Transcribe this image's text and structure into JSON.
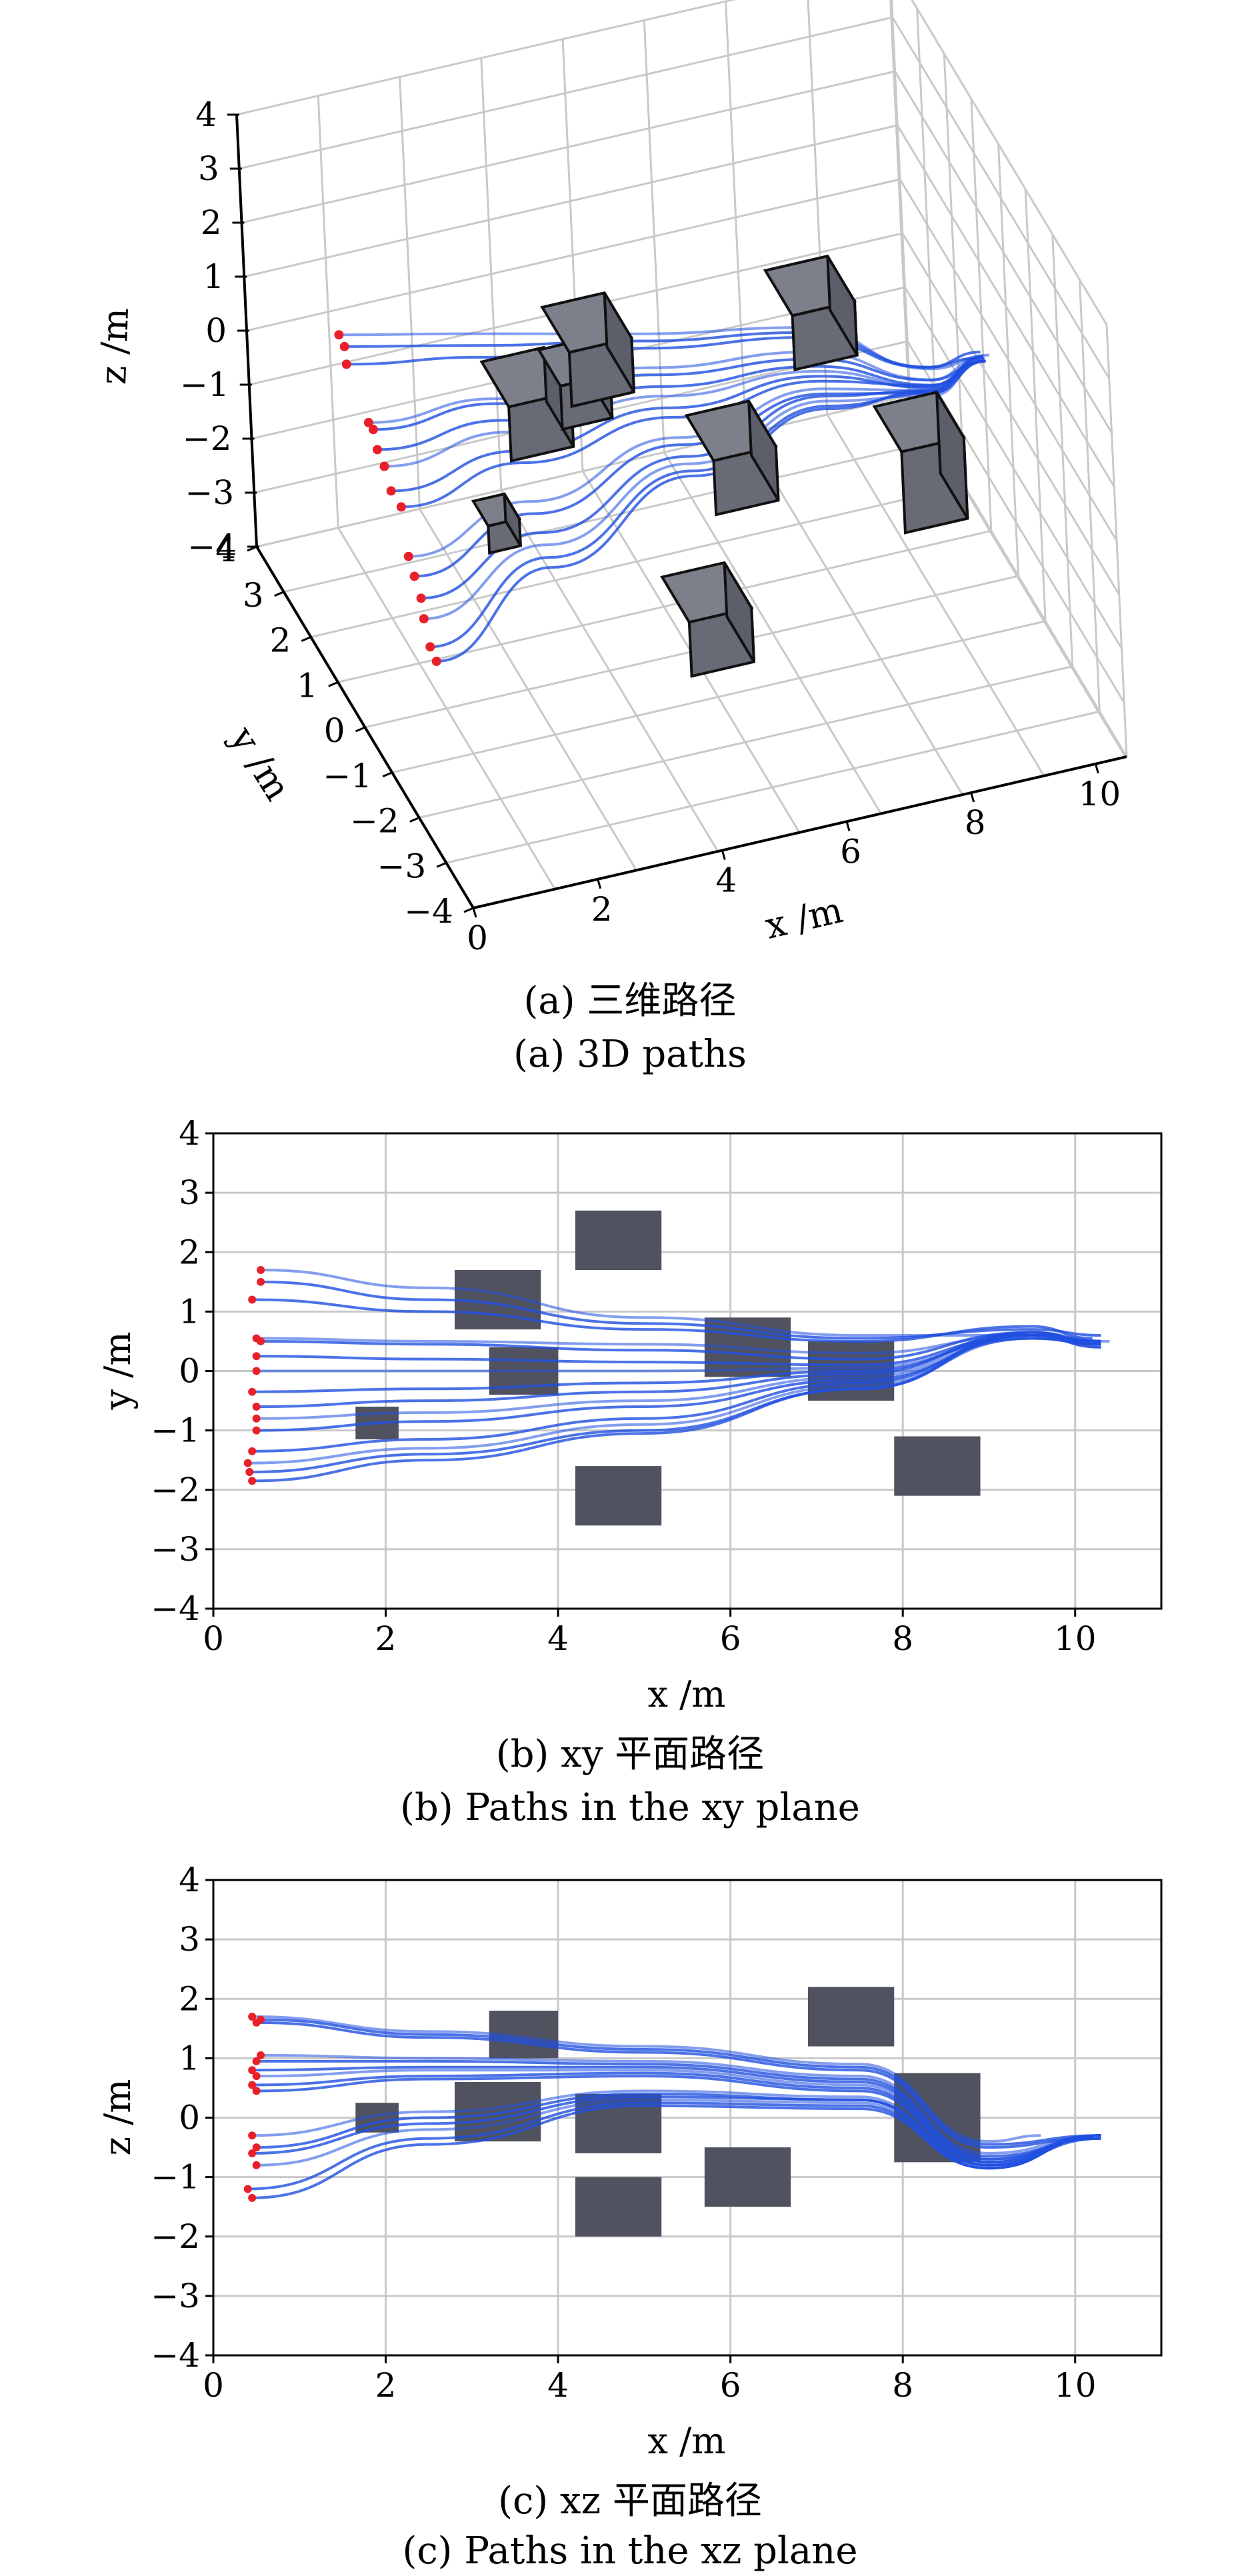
{
  "chart_data": [
    {
      "type": "scatter3d",
      "caption_zh": "(a) 三维路径",
      "caption_en": "(a) 3D paths",
      "xlabel": "x /m",
      "ylabel": "y /m",
      "zlabel": "z /m",
      "xlim": [
        0,
        10.5
      ],
      "ylim": [
        -4,
        4
      ],
      "zlim": [
        -4,
        4
      ],
      "xticks": [
        "0",
        "2",
        "4",
        "6",
        "8",
        "10"
      ],
      "yticks": [
        "−4",
        "−3",
        "−2",
        "−1",
        "0",
        "1",
        "2",
        "3",
        "4"
      ],
      "zticks": [
        "−4",
        "−3",
        "−2",
        "−1",
        "0",
        "1",
        "2",
        "3",
        "4"
      ],
      "grid": true,
      "path_color": "#1f4fe0",
      "start_color": "#e8202a",
      "obstacle_color": "#666a75"
    },
    {
      "type": "line",
      "caption_zh": "(b) xy 平面路径",
      "caption_en": "(b) Paths in the xy plane",
      "xlabel": "x /m",
      "ylabel": "y /m",
      "xlim": [
        0,
        11
      ],
      "ylim": [
        -4,
        4
      ],
      "xticks": [
        "0",
        "2",
        "4",
        "6",
        "8",
        "10"
      ],
      "yticks": [
        "−4",
        "−3",
        "−2",
        "−1",
        "0",
        "1",
        "2",
        "3",
        "4"
      ],
      "grid": true,
      "obstacle_color": "#50535f",
      "path_color": "#1f4fe0",
      "start_color": "#e8202a",
      "obstacles": [
        {
          "x0": 1.65,
          "x1": 2.15,
          "y0": -1.15,
          "y1": -0.6
        },
        {
          "x0": 2.8,
          "x1": 3.8,
          "y0": 0.7,
          "y1": 1.7
        },
        {
          "x0": 3.2,
          "x1": 4.0,
          "y0": -0.4,
          "y1": 0.4
        },
        {
          "x0": 4.2,
          "x1": 5.2,
          "y0": 1.7,
          "y1": 2.7
        },
        {
          "x0": 4.2,
          "x1": 5.2,
          "y0": -2.6,
          "y1": -1.6
        },
        {
          "x0": 5.7,
          "x1": 6.7,
          "y0": -0.1,
          "y1": 0.9
        },
        {
          "x0": 6.9,
          "x1": 7.9,
          "y0": -0.5,
          "y1": 0.5
        },
        {
          "x0": 7.9,
          "x1": 8.9,
          "y0": -2.1,
          "y1": -1.1
        }
      ],
      "starts": [
        {
          "x": 0.55,
          "y": 1.7
        },
        {
          "x": 0.55,
          "y": 1.5
        },
        {
          "x": 0.45,
          "y": 1.2
        },
        {
          "x": 0.5,
          "y": 0.55
        },
        {
          "x": 0.55,
          "y": 0.5
        },
        {
          "x": 0.5,
          "y": 0.25
        },
        {
          "x": 0.5,
          "y": 0.0
        },
        {
          "x": 0.45,
          "y": -0.35
        },
        {
          "x": 0.5,
          "y": -0.6
        },
        {
          "x": 0.5,
          "y": -0.8
        },
        {
          "x": 0.5,
          "y": -1.0
        },
        {
          "x": 0.45,
          "y": -1.35
        },
        {
          "x": 0.4,
          "y": -1.55
        },
        {
          "x": 0.42,
          "y": -1.7
        },
        {
          "x": 0.45,
          "y": -1.85
        }
      ],
      "paths": [
        [
          [
            0.55,
            1.7
          ],
          [
            2.5,
            1.4
          ],
          [
            5,
            0.9
          ],
          [
            7.5,
            0.6
          ],
          [
            9.5,
            0.6
          ],
          [
            10.4,
            0.5
          ]
        ],
        [
          [
            0.55,
            1.5
          ],
          [
            2.5,
            1.2
          ],
          [
            5,
            0.8
          ],
          [
            7.5,
            0.55
          ],
          [
            9.5,
            0.7
          ],
          [
            10.3,
            0.6
          ]
        ],
        [
          [
            0.45,
            1.2
          ],
          [
            2.5,
            1.0
          ],
          [
            5,
            0.7
          ],
          [
            7.5,
            0.5
          ],
          [
            9.5,
            0.75
          ],
          [
            10.2,
            0.55
          ]
        ],
        [
          [
            0.5,
            0.55
          ],
          [
            2.5,
            0.5
          ],
          [
            5,
            0.45
          ],
          [
            7.5,
            0.3
          ],
          [
            9.5,
            0.6
          ],
          [
            10.3,
            0.5
          ]
        ],
        [
          [
            0.55,
            0.5
          ],
          [
            2.5,
            0.45
          ],
          [
            5,
            0.35
          ],
          [
            7.5,
            0.2
          ],
          [
            9.5,
            0.65
          ],
          [
            10.3,
            0.45
          ]
        ],
        [
          [
            0.5,
            0.25
          ],
          [
            2.5,
            0.2
          ],
          [
            5,
            0.15
          ],
          [
            7.5,
            0.1
          ],
          [
            9.5,
            0.6
          ],
          [
            10.3,
            0.4
          ]
        ],
        [
          [
            0.5,
            0.0
          ],
          [
            2.5,
            0.0
          ],
          [
            5,
            0.0
          ],
          [
            7.5,
            0.05
          ],
          [
            9.5,
            0.55
          ],
          [
            10.3,
            0.45
          ]
        ],
        [
          [
            0.45,
            -0.35
          ],
          [
            2.5,
            -0.3
          ],
          [
            5,
            -0.2
          ],
          [
            7.5,
            0.0
          ],
          [
            9.5,
            0.6
          ],
          [
            10.3,
            0.5
          ]
        ],
        [
          [
            0.5,
            -0.6
          ],
          [
            2.5,
            -0.5
          ],
          [
            5,
            -0.35
          ],
          [
            7.5,
            -0.05
          ],
          [
            9.5,
            0.65
          ],
          [
            10.3,
            0.45
          ]
        ],
        [
          [
            0.5,
            -0.8
          ],
          [
            2.5,
            -0.7
          ],
          [
            5,
            -0.5
          ],
          [
            7.5,
            -0.1
          ],
          [
            9.5,
            0.6
          ],
          [
            10.3,
            0.4
          ]
        ],
        [
          [
            0.5,
            -1.0
          ],
          [
            2.5,
            -0.85
          ],
          [
            5,
            -0.6
          ],
          [
            7.5,
            -0.15
          ],
          [
            9.5,
            0.55
          ],
          [
            10.3,
            0.45
          ]
        ],
        [
          [
            0.45,
            -1.35
          ],
          [
            2.5,
            -1.15
          ],
          [
            5,
            -0.8
          ],
          [
            7.5,
            -0.2
          ],
          [
            9.5,
            0.6
          ],
          [
            10.3,
            0.5
          ]
        ],
        [
          [
            0.4,
            -1.55
          ],
          [
            2.5,
            -1.3
          ],
          [
            5,
            -0.9
          ],
          [
            7.5,
            -0.25
          ],
          [
            9.5,
            0.55
          ],
          [
            10.3,
            0.45
          ]
        ],
        [
          [
            0.42,
            -1.7
          ],
          [
            2.5,
            -1.4
          ],
          [
            5,
            -1.0
          ],
          [
            7.5,
            -0.3
          ],
          [
            9.5,
            0.6
          ],
          [
            10.3,
            0.5
          ]
        ],
        [
          [
            0.45,
            -1.85
          ],
          [
            2.5,
            -1.5
          ],
          [
            5,
            -1.05
          ],
          [
            7.5,
            -0.3
          ],
          [
            9.5,
            0.65
          ],
          [
            10.3,
            0.5
          ]
        ]
      ]
    },
    {
      "type": "line",
      "caption_zh": "(c) xz 平面路径",
      "caption_en": "(c) Paths in the xz plane",
      "xlabel": "x /m",
      "ylabel": "z /m",
      "xlim": [
        0,
        11
      ],
      "ylim": [
        -4,
        4
      ],
      "xticks": [
        "0",
        "2",
        "4",
        "6",
        "8",
        "10"
      ],
      "yticks": [
        "−4",
        "−3",
        "−2",
        "−1",
        "0",
        "1",
        "2",
        "3",
        "4"
      ],
      "grid": true,
      "obstacle_color": "#50535f",
      "path_color": "#1f4fe0",
      "start_color": "#e8202a",
      "obstacles": [
        {
          "x0": 1.65,
          "x1": 2.15,
          "y0": -0.25,
          "y1": 0.25
        },
        {
          "x0": 2.8,
          "x1": 3.8,
          "y0": -0.4,
          "y1": 0.6
        },
        {
          "x0": 3.2,
          "x1": 4.0,
          "y0": 1.0,
          "y1": 1.8
        },
        {
          "x0": 4.2,
          "x1": 5.2,
          "y0": -0.6,
          "y1": 0.4
        },
        {
          "x0": 4.2,
          "x1": 5.2,
          "y0": -2.0,
          "y1": -1.0
        },
        {
          "x0": 5.7,
          "x1": 6.7,
          "y0": -1.5,
          "y1": -0.5
        },
        {
          "x0": 6.9,
          "x1": 7.9,
          "y0": 1.2,
          "y1": 2.2
        },
        {
          "x0": 7.9,
          "x1": 8.9,
          "y0": -0.75,
          "y1": 0.75
        }
      ],
      "starts": [
        {
          "x": 0.45,
          "y": 1.7
        },
        {
          "x": 0.55,
          "y": 1.65
        },
        {
          "x": 0.5,
          "y": 1.6
        },
        {
          "x": 0.55,
          "y": 1.05
        },
        {
          "x": 0.5,
          "y": 0.95
        },
        {
          "x": 0.45,
          "y": 0.8
        },
        {
          "x": 0.5,
          "y": 0.7
        },
        {
          "x": 0.45,
          "y": 0.55
        },
        {
          "x": 0.5,
          "y": 0.45
        },
        {
          "x": 0.45,
          "y": -0.3
        },
        {
          "x": 0.5,
          "y": -0.5
        },
        {
          "x": 0.45,
          "y": -0.6
        },
        {
          "x": 0.5,
          "y": -0.8
        },
        {
          "x": 0.4,
          "y": -1.2
        },
        {
          "x": 0.45,
          "y": -1.35
        }
      ],
      "paths": [
        [
          [
            0.45,
            1.7
          ],
          [
            2.5,
            1.45
          ],
          [
            5,
            1.2
          ],
          [
            7.5,
            0.9
          ],
          [
            9.0,
            -0.4
          ],
          [
            9.6,
            -0.3
          ]
        ],
        [
          [
            0.55,
            1.65
          ],
          [
            2.5,
            1.4
          ],
          [
            5,
            1.15
          ],
          [
            7.5,
            0.85
          ],
          [
            9.0,
            -0.45
          ],
          [
            10.3,
            -0.3
          ]
        ],
        [
          [
            0.5,
            1.6
          ],
          [
            2.5,
            1.35
          ],
          [
            5,
            1.1
          ],
          [
            7.5,
            0.8
          ],
          [
            9.0,
            -0.5
          ],
          [
            10.2,
            -0.35
          ]
        ],
        [
          [
            0.55,
            1.05
          ],
          [
            2.5,
            1.0
          ],
          [
            5,
            0.95
          ],
          [
            7.5,
            0.7
          ],
          [
            9.0,
            -0.6
          ],
          [
            10.3,
            -0.3
          ]
        ],
        [
          [
            0.5,
            0.95
          ],
          [
            2.5,
            0.95
          ],
          [
            5,
            0.9
          ],
          [
            7.5,
            0.65
          ],
          [
            9.0,
            -0.65
          ],
          [
            10.3,
            -0.35
          ]
        ],
        [
          [
            0.45,
            0.8
          ],
          [
            2.5,
            0.85
          ],
          [
            5,
            0.85
          ],
          [
            7.5,
            0.6
          ],
          [
            9.0,
            -0.7
          ],
          [
            10.3,
            -0.3
          ]
        ],
        [
          [
            0.5,
            0.7
          ],
          [
            2.5,
            0.8
          ],
          [
            5,
            0.8
          ],
          [
            7.5,
            0.55
          ],
          [
            9.0,
            -0.7
          ],
          [
            10.3,
            -0.35
          ]
        ],
        [
          [
            0.45,
            0.55
          ],
          [
            2.5,
            0.7
          ],
          [
            5,
            0.75
          ],
          [
            7.5,
            0.5
          ],
          [
            9.0,
            -0.75
          ],
          [
            10.3,
            -0.3
          ]
        ],
        [
          [
            0.5,
            0.45
          ],
          [
            2.5,
            0.65
          ],
          [
            5,
            0.7
          ],
          [
            7.5,
            0.45
          ],
          [
            9.0,
            -0.75
          ],
          [
            10.3,
            -0.3
          ]
        ],
        [
          [
            0.45,
            -0.3
          ],
          [
            2.5,
            0.1
          ],
          [
            5,
            0.45
          ],
          [
            7.5,
            0.35
          ],
          [
            9.0,
            -0.8
          ],
          [
            10.3,
            -0.3
          ]
        ],
        [
          [
            0.5,
            -0.5
          ],
          [
            2.5,
            0.0
          ],
          [
            5,
            0.4
          ],
          [
            7.5,
            0.3
          ],
          [
            9.0,
            -0.8
          ],
          [
            10.3,
            -0.35
          ]
        ],
        [
          [
            0.45,
            -0.6
          ],
          [
            2.5,
            -0.1
          ],
          [
            5,
            0.35
          ],
          [
            7.5,
            0.3
          ],
          [
            9.0,
            -0.8
          ],
          [
            10.3,
            -0.3
          ]
        ],
        [
          [
            0.5,
            -0.8
          ],
          [
            2.5,
            -0.2
          ],
          [
            5,
            0.3
          ],
          [
            7.5,
            0.25
          ],
          [
            9.0,
            -0.85
          ],
          [
            10.3,
            -0.3
          ]
        ],
        [
          [
            0.4,
            -1.2
          ],
          [
            2.5,
            -0.35
          ],
          [
            5,
            0.25
          ],
          [
            7.5,
            0.2
          ],
          [
            9.0,
            -0.85
          ],
          [
            10.3,
            -0.3
          ]
        ],
        [
          [
            0.45,
            -1.35
          ],
          [
            2.5,
            -0.45
          ],
          [
            5,
            0.2
          ],
          [
            7.5,
            0.15
          ],
          [
            9.0,
            -0.85
          ],
          [
            10.3,
            -0.3
          ]
        ]
      ]
    }
  ]
}
